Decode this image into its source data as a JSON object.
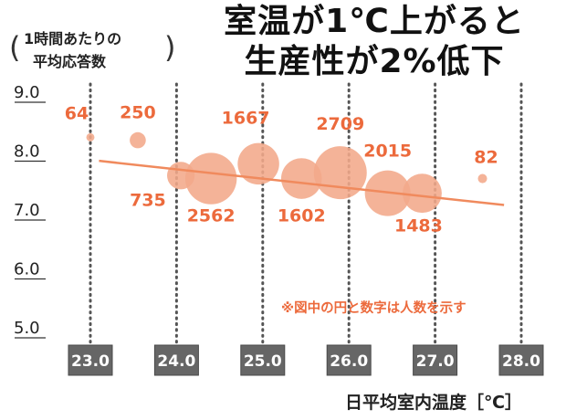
{
  "title_lines": [
    "室温が1℃上がると",
    "生産性が2%低下"
  ],
  "y_label_lines": [
    "1時間あたりの",
    "平均応答数"
  ],
  "x_label": "日平均室内温度［℃］",
  "annotation": "※図中の円と数字は人数を示す",
  "colors": {
    "accent": "#ec6a3c",
    "bubble": "#f3a98a",
    "trend": "#f08a5d",
    "tick_box": "#666666",
    "grid": "#555555"
  },
  "chart_data": {
    "type": "scatter",
    "x_ticks": [
      "23.0",
      "24.0",
      "25.0",
      "26.0",
      "27.0",
      "28.0"
    ],
    "y_ticks": [
      "9.0",
      "8.0",
      "7.0",
      "6.0",
      "5.0"
    ],
    "xlim": [
      23.0,
      28.0
    ],
    "ylim": [
      5.0,
      9.0
    ],
    "points": [
      {
        "x": 23.0,
        "y": 8.25,
        "size": 64,
        "label": "64"
      },
      {
        "x": 23.55,
        "y": 8.2,
        "size": 250,
        "label": "250"
      },
      {
        "x": 24.05,
        "y": 7.6,
        "size": 735,
        "label": "735"
      },
      {
        "x": 24.4,
        "y": 7.55,
        "size": 2562,
        "label": "2562"
      },
      {
        "x": 24.95,
        "y": 7.8,
        "size": 1667,
        "label": "1667"
      },
      {
        "x": 25.45,
        "y": 7.55,
        "size": 1602,
        "label": "1602"
      },
      {
        "x": 25.9,
        "y": 7.65,
        "size": 2709,
        "label": "2709"
      },
      {
        "x": 26.45,
        "y": 7.3,
        "size": 2015,
        "label": "2015"
      },
      {
        "x": 26.85,
        "y": 7.3,
        "size": 1483,
        "label": "1483"
      },
      {
        "x": 27.55,
        "y": 7.55,
        "size": 82,
        "label": "82"
      }
    ],
    "trend": {
      "x": [
        23.1,
        27.8
      ],
      "y": [
        7.85,
        7.1
      ]
    }
  }
}
